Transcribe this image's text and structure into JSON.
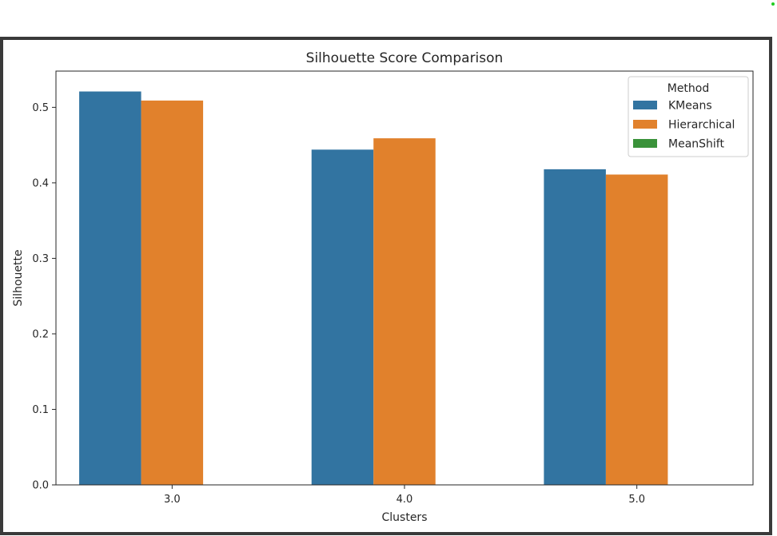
{
  "chart_data": {
    "type": "bar",
    "title": "Silhouette Score Comparison",
    "xlabel": "Clusters",
    "ylabel": "Silhouette",
    "categories": [
      "3.0",
      "4.0",
      "5.0"
    ],
    "series": [
      {
        "name": "KMeans",
        "color": "#3274a1",
        "values": [
          0.521,
          0.444,
          0.418
        ]
      },
      {
        "name": "Hierarchical",
        "color": "#e1812c",
        "values": [
          0.509,
          0.459,
          0.411
        ]
      },
      {
        "name": "MeanShift",
        "color": "#3a923a",
        "values": [
          null,
          null,
          null
        ]
      }
    ],
    "ylim": [
      0,
      0.548
    ],
    "yticks": [
      "0.0",
      "0.1",
      "0.2",
      "0.3",
      "0.4",
      "0.5"
    ],
    "ytick_values": [
      0,
      0.1,
      0.2,
      0.3,
      0.4,
      0.5
    ],
    "grid": false,
    "legend": {
      "title": "Method",
      "placement": "top-right"
    }
  }
}
